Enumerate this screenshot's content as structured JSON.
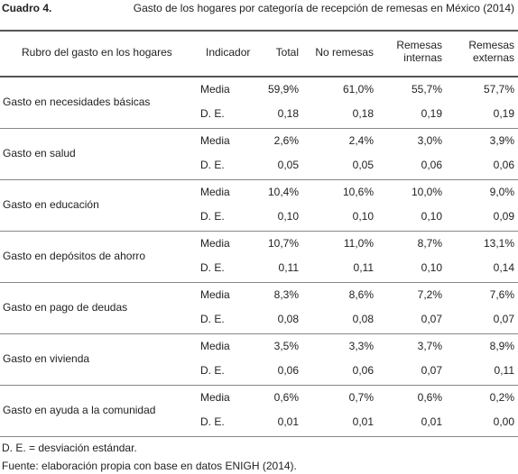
{
  "header": {
    "label": "Cuadro 4.",
    "title": "Gasto de los hogares por categoría de recepción de remesas en México (2014)"
  },
  "table": {
    "columns": [
      "Rubro del gasto en los hogares",
      "Indicador",
      "Total",
      "No remesas",
      "Remesas internas",
      "Remesas externas"
    ],
    "rows": [
      {
        "rubro": "Gasto en necesidades básicas",
        "lines": [
          [
            "Media",
            "59,9%",
            "61,0%",
            "55,7%",
            "57,7%"
          ],
          [
            "D. E.",
            "0,18",
            "0,18",
            "0,19",
            "0,19"
          ]
        ]
      },
      {
        "rubro": "Gasto en salud",
        "lines": [
          [
            "Media",
            "2,6%",
            "2,4%",
            "3,0%",
            "3,9%"
          ],
          [
            "D. E.",
            "0,05",
            "0,05",
            "0,06",
            "0,06"
          ]
        ]
      },
      {
        "rubro": "Gasto en educación",
        "lines": [
          [
            "Media",
            "10,4%",
            "10,6%",
            "10,0%",
            "9,0%"
          ],
          [
            "D. E.",
            "0,10",
            "0,10",
            "0,10",
            "0,09"
          ]
        ]
      },
      {
        "rubro": "Gasto en depósitos de ahorro",
        "lines": [
          [
            "Media",
            "10,7%",
            "11,0%",
            "8,7%",
            "13,1%"
          ],
          [
            "D. E.",
            "0,11",
            "0,11",
            "0,10",
            "0,14"
          ]
        ]
      },
      {
        "rubro": "Gasto en pago de deudas",
        "lines": [
          [
            "Media",
            "8,3%",
            "8,6%",
            "7,2%",
            "7,6%"
          ],
          [
            "D. E.",
            "0,08",
            "0,08",
            "0,07",
            "0,07"
          ]
        ]
      },
      {
        "rubro": "Gasto en vivienda",
        "lines": [
          [
            "Media",
            "3,5%",
            "3,3%",
            "3,7%",
            "8,9%"
          ],
          [
            "D. E.",
            "0,06",
            "0,06",
            "0,07",
            "0,11"
          ]
        ]
      },
      {
        "rubro": "Gasto en ayuda a la comunidad",
        "lines": [
          [
            "Media",
            "0,6%",
            "0,7%",
            "0,6%",
            "0,2%"
          ],
          [
            "D. E.",
            "0,01",
            "0,01",
            "0,01",
            "0,00"
          ]
        ]
      }
    ]
  },
  "footnotes": [
    "D. E. = desviación estándar.",
    "Fuente: elaboración propia con base en datos ENIGH (2014)."
  ]
}
